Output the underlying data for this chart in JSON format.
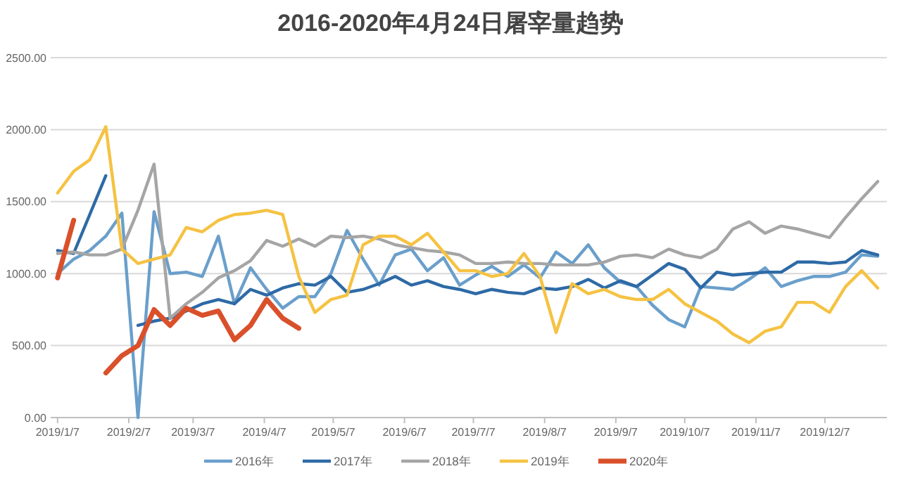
{
  "chart_data": {
    "type": "line",
    "title": "2016-2020年4月24日屠宰量趋势",
    "x": [
      "2019-01-07",
      "2019-01-14",
      "2019-01-21",
      "2019-01-28",
      "2019-02-04",
      "2019-02-11",
      "2019-02-18",
      "2019-02-25",
      "2019-03-04",
      "2019-03-11",
      "2019-03-18",
      "2019-03-25",
      "2019-04-01",
      "2019-04-08",
      "2019-04-15",
      "2019-04-22",
      "2019-04-29",
      "2019-05-06",
      "2019-05-13",
      "2019-05-20",
      "2019-05-27",
      "2019-06-03",
      "2019-06-10",
      "2019-06-17",
      "2019-06-24",
      "2019-07-01",
      "2019-07-08",
      "2019-07-15",
      "2019-07-22",
      "2019-07-29",
      "2019-08-05",
      "2019-08-12",
      "2019-08-19",
      "2019-08-26",
      "2019-09-02",
      "2019-09-09",
      "2019-09-16",
      "2019-09-23",
      "2019-09-30",
      "2019-10-07",
      "2019-10-14",
      "2019-10-21",
      "2019-10-28",
      "2019-11-04",
      "2019-11-11",
      "2019-11-18",
      "2019-11-25",
      "2019-12-02",
      "2019-12-09",
      "2019-12-16",
      "2019-12-23",
      "2019-12-30"
    ],
    "series": [
      {
        "name": "2016年",
        "color": "#6a9fcb",
        "values": [
          1000,
          1100,
          1160,
          1260,
          1420,
          0,
          1430,
          1000,
          1010,
          980,
          1260,
          790,
          1040,
          890,
          760,
          840,
          840,
          1000,
          1300,
          1100,
          920,
          1130,
          1170,
          1020,
          1110,
          920,
          990,
          1050,
          980,
          1060,
          970,
          1150,
          1070,
          1200,
          1040,
          940,
          910,
          780,
          680,
          630,
          910,
          900,
          890,
          960,
          1040,
          910,
          950,
          980,
          980,
          1010,
          1130,
          1120
        ]
      },
      {
        "name": "2017年",
        "color": "#2e6aa6",
        "values": [
          1160,
          1140,
          1410,
          1680,
          null,
          640,
          670,
          690,
          740,
          790,
          820,
          790,
          890,
          850,
          900,
          930,
          920,
          980,
          870,
          890,
          930,
          980,
          920,
          950,
          910,
          890,
          860,
          890,
          870,
          860,
          900,
          890,
          910,
          960,
          900,
          950,
          910,
          990,
          1070,
          1030,
          900,
          1010,
          990,
          1000,
          1010,
          1010,
          1080,
          1080,
          1070,
          1080,
          1160,
          1130
        ]
      },
      {
        "name": "2018年",
        "color": "#a5a5a5",
        "values": [
          1140,
          1150,
          1130,
          1130,
          1170,
          1440,
          1760,
          690,
          790,
          870,
          970,
          1020,
          1090,
          1230,
          1190,
          1240,
          1190,
          1260,
          1250,
          1260,
          1240,
          1200,
          1180,
          1160,
          1150,
          1130,
          1070,
          1070,
          1080,
          1070,
          1070,
          1060,
          1060,
          1060,
          1080,
          1120,
          1130,
          1110,
          1170,
          1130,
          1110,
          1170,
          1310,
          1360,
          1280,
          1330,
          1310,
          1280,
          1250,
          1390,
          1520,
          1640
        ]
      },
      {
        "name": "2019年",
        "color": "#f5c242",
        "values": [
          1560,
          1710,
          1790,
          2020,
          1170,
          1070,
          1100,
          1130,
          1320,
          1290,
          1370,
          1410,
          1420,
          1440,
          1410,
          980,
          730,
          820,
          850,
          1200,
          1260,
          1260,
          1200,
          1280,
          1150,
          1020,
          1020,
          980,
          1000,
          1140,
          980,
          590,
          930,
          860,
          890,
          840,
          820,
          820,
          890,
          790,
          730,
          670,
          580,
          520,
          600,
          630,
          800,
          800,
          730,
          910,
          1020,
          900
        ]
      },
      {
        "name": "2020年",
        "color": "#d9502b",
        "values": [
          970,
          1370,
          null,
          310,
          430,
          500,
          750,
          640,
          760,
          710,
          740,
          540,
          640,
          820,
          690,
          620,
          null,
          null,
          null,
          null,
          null,
          null,
          null,
          null,
          null,
          null,
          null,
          null,
          null,
          null,
          null,
          null,
          null,
          null,
          null,
          null,
          null,
          null,
          null,
          null,
          null,
          null,
          null,
          null,
          null,
          null,
          null,
          null,
          null,
          null,
          null,
          null
        ]
      }
    ],
    "xlim": [
      "2019-01-04",
      "2020-01-03"
    ],
    "xticks": [
      {
        "value": "2019-01-07",
        "label": "2019/1/7"
      },
      {
        "value": "2019-02-07",
        "label": "2019/2/7"
      },
      {
        "value": "2019-03-07",
        "label": "2019/3/7"
      },
      {
        "value": "2019-04-07",
        "label": "2019/4/7"
      },
      {
        "value": "2019-05-07",
        "label": "2019/5/7"
      },
      {
        "value": "2019-06-07",
        "label": "2019/6/7"
      },
      {
        "value": "2019-07-07",
        "label": "2019/7/7"
      },
      {
        "value": "2019-08-07",
        "label": "2019/8/7"
      },
      {
        "value": "2019-09-07",
        "label": "2019/9/7"
      },
      {
        "value": "2019-10-07",
        "label": "2019/10/7"
      },
      {
        "value": "2019-11-07",
        "label": "2019/11/7"
      },
      {
        "value": "2019-12-07",
        "label": "2019/12/7"
      }
    ],
    "ylim": [
      0,
      2500
    ],
    "yticks": [
      {
        "value": 0,
        "label": "0.00"
      },
      {
        "value": 500,
        "label": "500.00"
      },
      {
        "value": 1000,
        "label": "1000.00"
      },
      {
        "value": 1500,
        "label": "1500.00"
      },
      {
        "value": 2000,
        "label": "2000.00"
      },
      {
        "value": 2500,
        "label": "2500.00"
      }
    ],
    "grid": "y",
    "legend": "bottom",
    "marker": "none",
    "line_style": "solid"
  }
}
